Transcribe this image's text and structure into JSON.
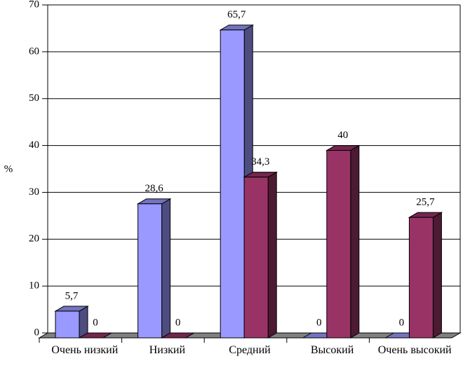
{
  "chart_data": {
    "type": "bar3d",
    "y_label": "%",
    "categories": [
      "Очень низкий",
      "Низкий",
      "Средний",
      "Высокий",
      "Очень высокий"
    ],
    "series": [
      {
        "color": "#9999ff",
        "values": [
          5.7,
          28.6,
          65.7,
          0,
          0
        ],
        "value_labels": [
          "5,7",
          "28,6",
          "65,7",
          "0",
          "0"
        ]
      },
      {
        "color": "#993366",
        "values": [
          0,
          0,
          34.3,
          40,
          25.7
        ],
        "value_labels": [
          "0",
          "0",
          "34,3",
          "40",
          "25,7"
        ]
      }
    ],
    "ylim": [
      0,
      70
    ],
    "yticks": [
      0,
      10,
      20,
      30,
      40,
      50,
      60,
      70
    ],
    "grid": true
  }
}
